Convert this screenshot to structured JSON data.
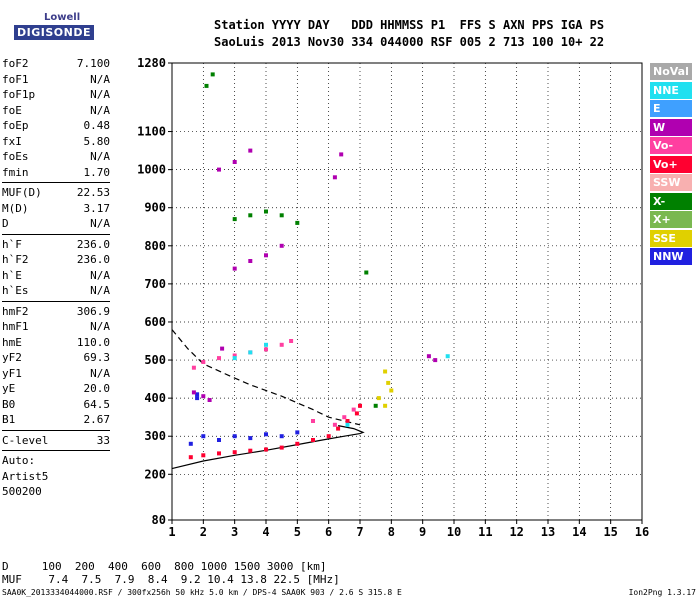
{
  "logo": {
    "line1": "Lowell",
    "line2": "DIGISONDE"
  },
  "header": {
    "line1": "Station YYYY DAY   DDD HHMMSS P1  FFS S AXN PPS IGA PS",
    "line2": "SaoLuis 2013 Nov30 334 044000 RSF 005 2 713 100 10+ 22"
  },
  "params": [
    {
      "k": "foF2",
      "v": "7.100"
    },
    {
      "k": "foF1",
      "v": "N/A"
    },
    {
      "k": "foF1p",
      "v": "N/A"
    },
    {
      "k": "foE",
      "v": "N/A"
    },
    {
      "k": "foEp",
      "v": "0.48"
    },
    {
      "k": "fxI",
      "v": "5.80"
    },
    {
      "k": "foEs",
      "v": "N/A"
    },
    {
      "k": "fmin",
      "v": "1.70"
    },
    {
      "sep": true
    },
    {
      "k": "MUF(D)",
      "v": "22.53"
    },
    {
      "k": "M(D)",
      "v": "3.17"
    },
    {
      "k": "D",
      "v": "N/A"
    },
    {
      "sep": true
    },
    {
      "k": "h`F",
      "v": "236.0"
    },
    {
      "k": "h`F2",
      "v": "236.0"
    },
    {
      "k": "h`E",
      "v": "N/A"
    },
    {
      "k": "h`Es",
      "v": "N/A"
    },
    {
      "sep": true
    },
    {
      "k": "hmF2",
      "v": "306.9"
    },
    {
      "k": "hmF1",
      "v": "N/A"
    },
    {
      "k": "hmE",
      "v": "110.0"
    },
    {
      "k": "yF2",
      "v": "69.3"
    },
    {
      "k": "yF1",
      "v": "N/A"
    },
    {
      "k": "yE",
      "v": "20.0"
    },
    {
      "k": "B0",
      "v": "64.5"
    },
    {
      "k": "B1",
      "v": "2.67"
    },
    {
      "sep": true
    },
    {
      "k": "C-level",
      "v": "33"
    },
    {
      "sep": true
    },
    {
      "text": "Auto:"
    },
    {
      "text": "Artist5"
    },
    {
      "text": "500200"
    }
  ],
  "legend": [
    {
      "label": "NoVal",
      "color": "#a9a9a9"
    },
    {
      "label": "NNE",
      "color": "#20e0f0"
    },
    {
      "label": "E",
      "color": "#3fa0ff"
    },
    {
      "label": "W",
      "color": "#b000b0"
    },
    {
      "label": "Vo-",
      "color": "#ff3fa0"
    },
    {
      "label": "Vo+",
      "color": "#ff0030"
    },
    {
      "label": "SSW",
      "color": "#f8b0b0"
    },
    {
      "label": "X-",
      "color": "#008000"
    },
    {
      "label": "X+",
      "color": "#7ab850"
    },
    {
      "label": "SSE",
      "color": "#e0d000"
    },
    {
      "label": "NNW",
      "color": "#2020e0"
    }
  ],
  "muf_table": {
    "d_row": "D     100  200  400  600  800 1000 1500 3000 [km]",
    "muf_row": "MUF    7.4  7.5  7.9  8.4  9.2 10.4 13.8 22.5 [MHz]"
  },
  "footer": {
    "left": "SAA0K_2013334044000.RSF / 300fx256h 50 kHz 5.0 km / DPS-4 SAA0K 903 / 2.6 S 315.8 E",
    "right": "Ion2Png 1.3.17"
  },
  "chart_data": {
    "type": "scatter",
    "title": "",
    "xlabel": "",
    "ylabel": "",
    "xlim": [
      1,
      16
    ],
    "ylim": [
      80,
      1280
    ],
    "x_ticks": [
      1,
      2,
      3,
      4,
      5,
      6,
      7,
      8,
      9,
      10,
      11,
      12,
      13,
      14,
      15,
      16
    ],
    "y_ticks": [
      80,
      200,
      300,
      400,
      500,
      600,
      700,
      800,
      900,
      1000,
      1100,
      1280
    ],
    "grid": true,
    "legend_position": "right",
    "series": [
      {
        "name": "Vo+",
        "points": [
          [
            1.6,
            245
          ],
          [
            2.0,
            250
          ],
          [
            2.5,
            255
          ],
          [
            3.0,
            258
          ],
          [
            3.5,
            262
          ],
          [
            4.0,
            265
          ],
          [
            4.5,
            270
          ],
          [
            5.0,
            280
          ],
          [
            5.5,
            290
          ],
          [
            6.0,
            300
          ],
          [
            6.3,
            320
          ],
          [
            6.6,
            340
          ],
          [
            6.9,
            360
          ],
          [
            7.0,
            380
          ]
        ]
      },
      {
        "name": "Vo-",
        "points": [
          [
            1.7,
            480
          ],
          [
            2.0,
            495
          ],
          [
            2.5,
            505
          ],
          [
            3.0,
            512
          ],
          [
            3.5,
            520
          ],
          [
            4.0,
            528
          ],
          [
            4.5,
            540
          ],
          [
            4.8,
            550
          ],
          [
            5.5,
            340
          ],
          [
            6.2,
            330
          ],
          [
            6.5,
            350
          ],
          [
            6.8,
            370
          ]
        ]
      },
      {
        "name": "NNW",
        "points": [
          [
            1.6,
            280
          ],
          [
            2.0,
            300
          ],
          [
            2.5,
            290
          ],
          [
            3.0,
            300
          ],
          [
            3.5,
            295
          ],
          [
            4.0,
            305
          ],
          [
            4.5,
            300
          ],
          [
            5.0,
            310
          ],
          [
            1.8,
            410
          ],
          [
            1.8,
            400
          ]
        ]
      },
      {
        "name": "W",
        "points": [
          [
            1.7,
            415
          ],
          [
            2.0,
            405
          ],
          [
            2.2,
            395
          ],
          [
            2.6,
            530
          ],
          [
            3.0,
            740
          ],
          [
            3.5,
            760
          ],
          [
            4.0,
            775
          ],
          [
            4.5,
            800
          ],
          [
            2.5,
            1000
          ],
          [
            3.0,
            1020
          ],
          [
            3.5,
            1050
          ],
          [
            6.2,
            980
          ],
          [
            6.4,
            1040
          ],
          [
            9.2,
            510
          ],
          [
            9.4,
            500
          ]
        ]
      },
      {
        "name": "X-",
        "points": [
          [
            2.1,
            1220
          ],
          [
            2.3,
            1250
          ],
          [
            3.0,
            870
          ],
          [
            3.5,
            880
          ],
          [
            4.0,
            890
          ],
          [
            4.5,
            880
          ],
          [
            5.0,
            860
          ],
          [
            7.2,
            730
          ],
          [
            7.5,
            380
          ]
        ]
      },
      {
        "name": "SSE",
        "points": [
          [
            7.8,
            470
          ],
          [
            7.9,
            440
          ],
          [
            8.0,
            420
          ],
          [
            7.6,
            400
          ],
          [
            7.8,
            380
          ]
        ]
      },
      {
        "name": "NNE",
        "points": [
          [
            3.0,
            505
          ],
          [
            3.5,
            520
          ],
          [
            4.0,
            540
          ],
          [
            6.6,
            330
          ],
          [
            9.8,
            510
          ]
        ]
      }
    ],
    "annotations": [
      {
        "type": "curve",
        "name": "true-height-profile",
        "points": [
          [
            1.0,
            215
          ],
          [
            2.0,
            235
          ],
          [
            3.0,
            250
          ],
          [
            4.0,
            263
          ],
          [
            5.0,
            278
          ],
          [
            5.8,
            290
          ],
          [
            6.5,
            300
          ],
          [
            7.0,
            307
          ],
          [
            7.1,
            310
          ],
          [
            6.8,
            320
          ],
          [
            6.3,
            328
          ]
        ]
      },
      {
        "type": "dashed-curve",
        "name": "model-trace",
        "points": [
          [
            1.0,
            580
          ],
          [
            1.5,
            530
          ],
          [
            2.0,
            490
          ],
          [
            2.8,
            460
          ],
          [
            3.5,
            435
          ],
          [
            4.5,
            405
          ],
          [
            5.5,
            370
          ],
          [
            6.0,
            350
          ],
          [
            6.5,
            340
          ],
          [
            7.0,
            330
          ]
        ]
      }
    ]
  }
}
